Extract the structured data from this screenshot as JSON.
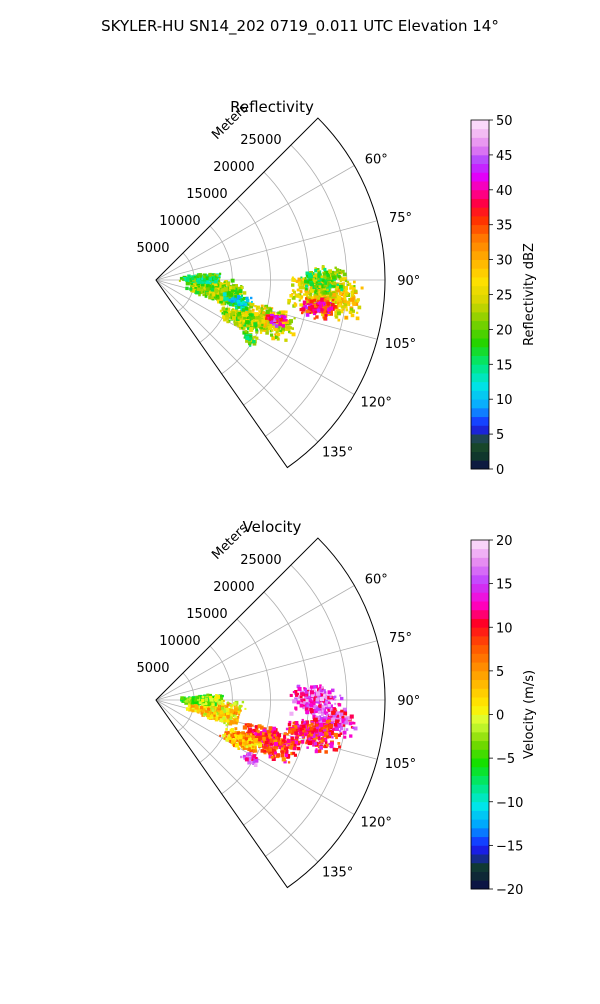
{
  "title": "SKYLER-HU  SN14_202  0719_0.011 UTC Elevation 14°",
  "chart_data": [
    {
      "type": "heatmap",
      "projection": "polar-sector",
      "title": "Reflectivity",
      "radial_label": "Meters",
      "r_range": [
        0,
        30000
      ],
      "r_ticks": [
        5000,
        10000,
        15000,
        20000,
        25000
      ],
      "r_tick_labels": [
        "5000",
        "10000",
        "15000",
        "20000",
        "25000"
      ],
      "theta_range_deg": [
        45,
        145
      ],
      "theta_ticks_deg": [
        60,
        75,
        90,
        105,
        120,
        135
      ],
      "theta_tick_labels": [
        "60°",
        "75°",
        "90°",
        "105°",
        "120°",
        "135°"
      ],
      "grid": true,
      "colorbar": {
        "label": "Reflectivity dBZ",
        "min": 0,
        "max": 50,
        "ticks": [
          0,
          5,
          10,
          15,
          20,
          25,
          30,
          35,
          40,
          45,
          50
        ],
        "tick_labels": [
          "0",
          "5",
          "10",
          "15",
          "20",
          "25",
          "30",
          "35",
          "40",
          "45",
          "50"
        ]
      },
      "echo_regions": [
        {
          "theta": 95,
          "r": 22500,
          "dtheta": 8,
          "dr": 5000,
          "value": 26
        },
        {
          "theta": 100,
          "r": 21500,
          "dtheta": 4,
          "dr": 2500,
          "value": 38
        },
        {
          "theta": 90,
          "r": 22000,
          "dtheta": 5,
          "dr": 3000,
          "value": 20
        },
        {
          "theta": 110,
          "r": 15500,
          "dtheta": 7,
          "dr": 4000,
          "value": 25
        },
        {
          "theta": 108,
          "r": 16500,
          "dtheta": 3,
          "dr": 1500,
          "value": 40
        },
        {
          "theta": 115,
          "r": 12000,
          "dtheta": 6,
          "dr": 3000,
          "value": 22
        },
        {
          "theta": 100,
          "r": 8000,
          "dtheta": 10,
          "dr": 4000,
          "value": 22
        },
        {
          "theta": 88,
          "r": 6000,
          "dtheta": 6,
          "dr": 3000,
          "value": 18
        },
        {
          "theta": 105,
          "r": 11000,
          "dtheta": 5,
          "dr": 2000,
          "value": 14
        },
        {
          "theta": 122,
          "r": 14500,
          "dtheta": 3,
          "dr": 1200,
          "value": 18
        }
      ]
    },
    {
      "type": "heatmap",
      "projection": "polar-sector",
      "title": "Velocity",
      "radial_label": "Meters",
      "r_range": [
        0,
        30000
      ],
      "r_ticks": [
        5000,
        10000,
        15000,
        20000,
        25000
      ],
      "r_tick_labels": [
        "5000",
        "10000",
        "15000",
        "20000",
        "25000"
      ],
      "theta_range_deg": [
        45,
        145
      ],
      "theta_ticks_deg": [
        60,
        75,
        90,
        105,
        120,
        135
      ],
      "theta_tick_labels": [
        "60°",
        "75°",
        "90°",
        "105°",
        "120°",
        "135°"
      ],
      "grid": true,
      "colorbar": {
        "label": "Velocity (m/s)",
        "min": -20,
        "max": 20,
        "ticks": [
          -20,
          -15,
          -10,
          -5,
          0,
          5,
          10,
          15,
          20
        ],
        "tick_labels": [
          "−20",
          "−15",
          "−10",
          "−5",
          "0",
          "5",
          "10",
          "15",
          "20"
        ]
      },
      "echo_regions": [
        {
          "theta": 90,
          "r": 21000,
          "dtheta": 6,
          "dr": 3500,
          "value": 15
        },
        {
          "theta": 97,
          "r": 23500,
          "dtheta": 5,
          "dr": 3000,
          "value": 14
        },
        {
          "theta": 102,
          "r": 21000,
          "dtheta": 6,
          "dr": 4000,
          "value": 10
        },
        {
          "theta": 110,
          "r": 16000,
          "dtheta": 7,
          "dr": 4000,
          "value": 9
        },
        {
          "theta": 115,
          "r": 12500,
          "dtheta": 6,
          "dr": 3000,
          "value": 4
        },
        {
          "theta": 100,
          "r": 8000,
          "dtheta": 10,
          "dr": 4000,
          "value": 2
        },
        {
          "theta": 90,
          "r": 6000,
          "dtheta": 6,
          "dr": 3000,
          "value": -3
        },
        {
          "theta": 122,
          "r": 14500,
          "dtheta": 3,
          "dr": 1200,
          "value": 15
        }
      ]
    }
  ]
}
